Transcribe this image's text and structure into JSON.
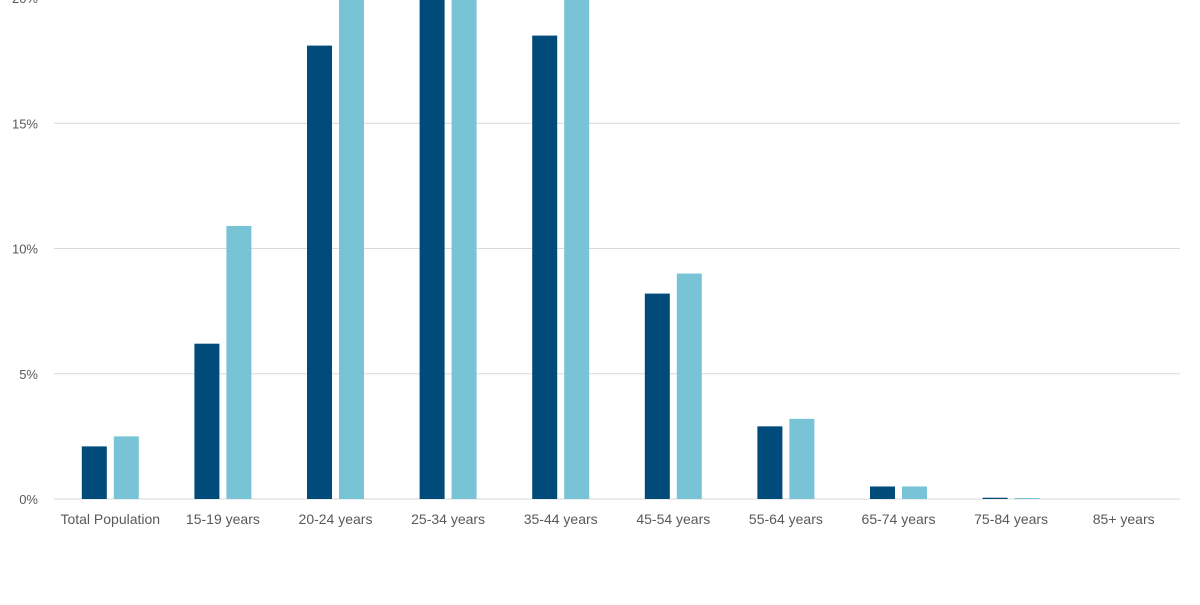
{
  "chart_data": {
    "type": "bar",
    "title": "",
    "xlabel": "",
    "ylabel": "",
    "categories": [
      "Total Population",
      "15-19 years",
      "20-24 years",
      "25-34 years",
      "35-44 years",
      "45-54 years",
      "55-64 years",
      "65-74 years",
      "75-84 years",
      "85+ years"
    ],
    "series": [
      {
        "color": "#004b7a",
        "values": [
          2.1,
          6.2,
          18.1,
          20.6,
          18.5,
          8.2,
          2.9,
          0.5,
          0.05,
          0
        ]
      },
      {
        "color": "#78c4d6",
        "values": [
          2.5,
          10.9,
          20.8,
          22.0,
          20.4,
          9.0,
          3.2,
          0.5,
          0.04,
          0
        ]
      }
    ],
    "y_ticks": [
      {
        "value": 0,
        "label": "0%"
      },
      {
        "value": 5,
        "label": "5%"
      },
      {
        "value": 10,
        "label": "10%"
      },
      {
        "value": 15,
        "label": "15%"
      },
      {
        "value": 20,
        "label": "20%"
      }
    ],
    "ylim": [
      0,
      20
    ],
    "grid": true,
    "legend": "none",
    "colors": {
      "gridline": "#d9d9d9",
      "axis_text": "#595959"
    }
  }
}
